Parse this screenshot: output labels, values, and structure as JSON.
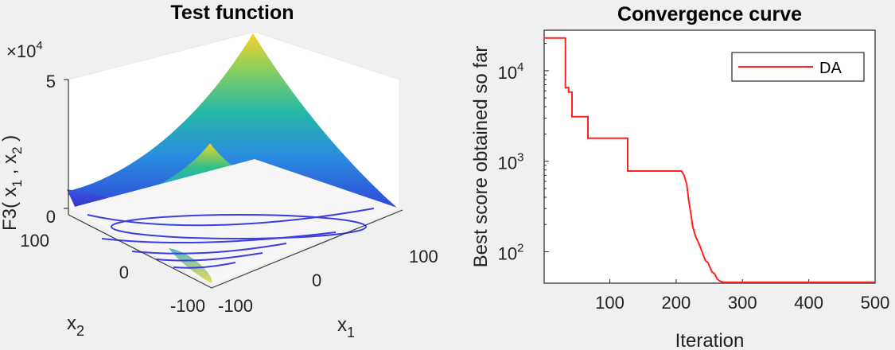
{
  "colors": {
    "background": "#f0f0f0",
    "series_line": "#ff2020",
    "surface_high": "#f4cf22",
    "surface_mid": "#23b5a0",
    "surface_low": "#3150d8"
  },
  "chart_data": [
    {
      "type": "surface",
      "title": "Test function",
      "exponent_label": "×10",
      "exponent_power": "4",
      "zlabel": {
        "main": "F3( x",
        "sub1": "1",
        "mid": " , x",
        "sub2": "2",
        "end": " )"
      },
      "xlabel": {
        "main": "x",
        "sub": "1"
      },
      "ylabel": {
        "main": "x",
        "sub": "2"
      },
      "z_ticks": [
        "5",
        "0"
      ],
      "x_ticks": [
        "-100",
        "0",
        "100"
      ],
      "y_ticks": [
        "100",
        "0",
        "-100"
      ],
      "xlim": [
        -100,
        100
      ],
      "ylim": [
        -100,
        100
      ],
      "zlim": [
        0,
        50000
      ]
    },
    {
      "type": "line",
      "title": "Convergence curve",
      "xlabel": "Iteration",
      "ylabel": "Best score obtained so far",
      "yscale": "log",
      "xlim": [
        1,
        500
      ],
      "ylim": [
        45,
        28000
      ],
      "x_ticks": [
        100,
        200,
        300,
        400,
        500
      ],
      "y_ticks": [
        {
          "value": 100,
          "base": "10",
          "exp": "2"
        },
        {
          "value": 1000,
          "base": "10",
          "exp": "3"
        },
        {
          "value": 10000,
          "base": "10",
          "exp": "4"
        }
      ],
      "legend_position": "top-right",
      "series": [
        {
          "name": "DA",
          "color": "#ff2020",
          "points": [
            [
              1,
              23000
            ],
            [
              33,
              23000
            ],
            [
              33,
              6500
            ],
            [
              38,
              6500
            ],
            [
              38,
              5800
            ],
            [
              43,
              5800
            ],
            [
              43,
              3100
            ],
            [
              67,
              3100
            ],
            [
              67,
              1800
            ],
            [
              127,
              1800
            ],
            [
              127,
              780
            ],
            [
              208,
              780
            ],
            [
              212,
              700
            ],
            [
              216,
              560
            ],
            [
              219,
              370
            ],
            [
              222,
              270
            ],
            [
              225,
              190
            ],
            [
              229,
              150
            ],
            [
              235,
              120
            ],
            [
              238,
              105
            ],
            [
              244,
              80
            ],
            [
              248,
              76
            ],
            [
              254,
              60
            ],
            [
              258,
              57
            ],
            [
              262,
              50
            ],
            [
              267,
              47
            ],
            [
              272,
              46
            ],
            [
              500,
              46
            ]
          ]
        }
      ]
    }
  ]
}
